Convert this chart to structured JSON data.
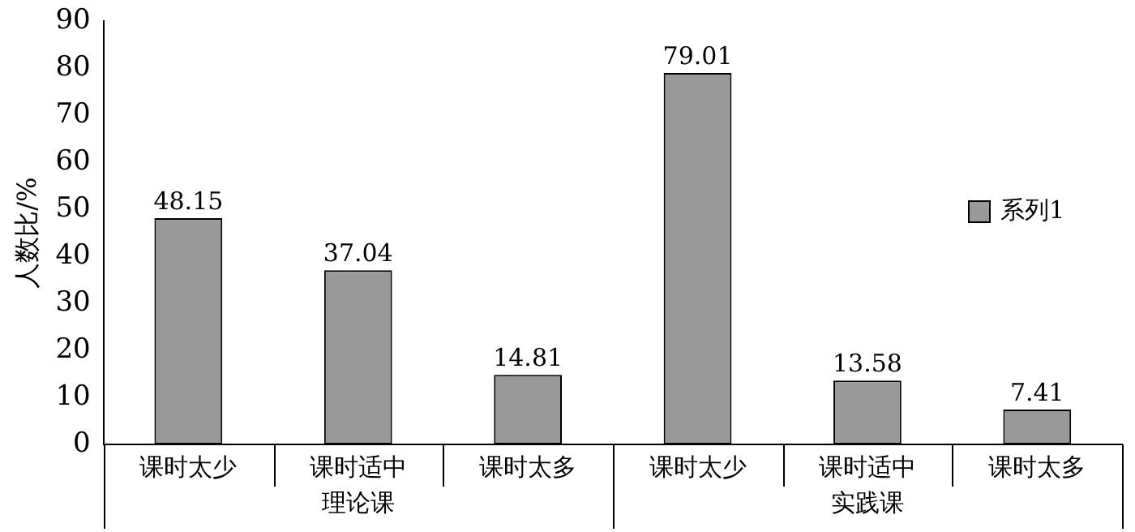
{
  "chart_data": {
    "type": "bar",
    "ylabel": "人数比/%",
    "categories": [
      "课时太少",
      "课时适中",
      "课时太多",
      "课时太少",
      "课时适中",
      "课时太多"
    ],
    "series": [
      {
        "name": "系列1",
        "color": "#999999",
        "values": [
          48.15,
          37.04,
          14.81,
          79.01,
          13.58,
          7.41
        ]
      }
    ],
    "ylim": [
      0,
      90
    ],
    "yticks": [
      0,
      10,
      20,
      30,
      40,
      50,
      60,
      70,
      80,
      90
    ],
    "annotations": [
      "理论课",
      "实践课"
    ],
    "data_labels": true,
    "grid": false,
    "legend": "right"
  }
}
